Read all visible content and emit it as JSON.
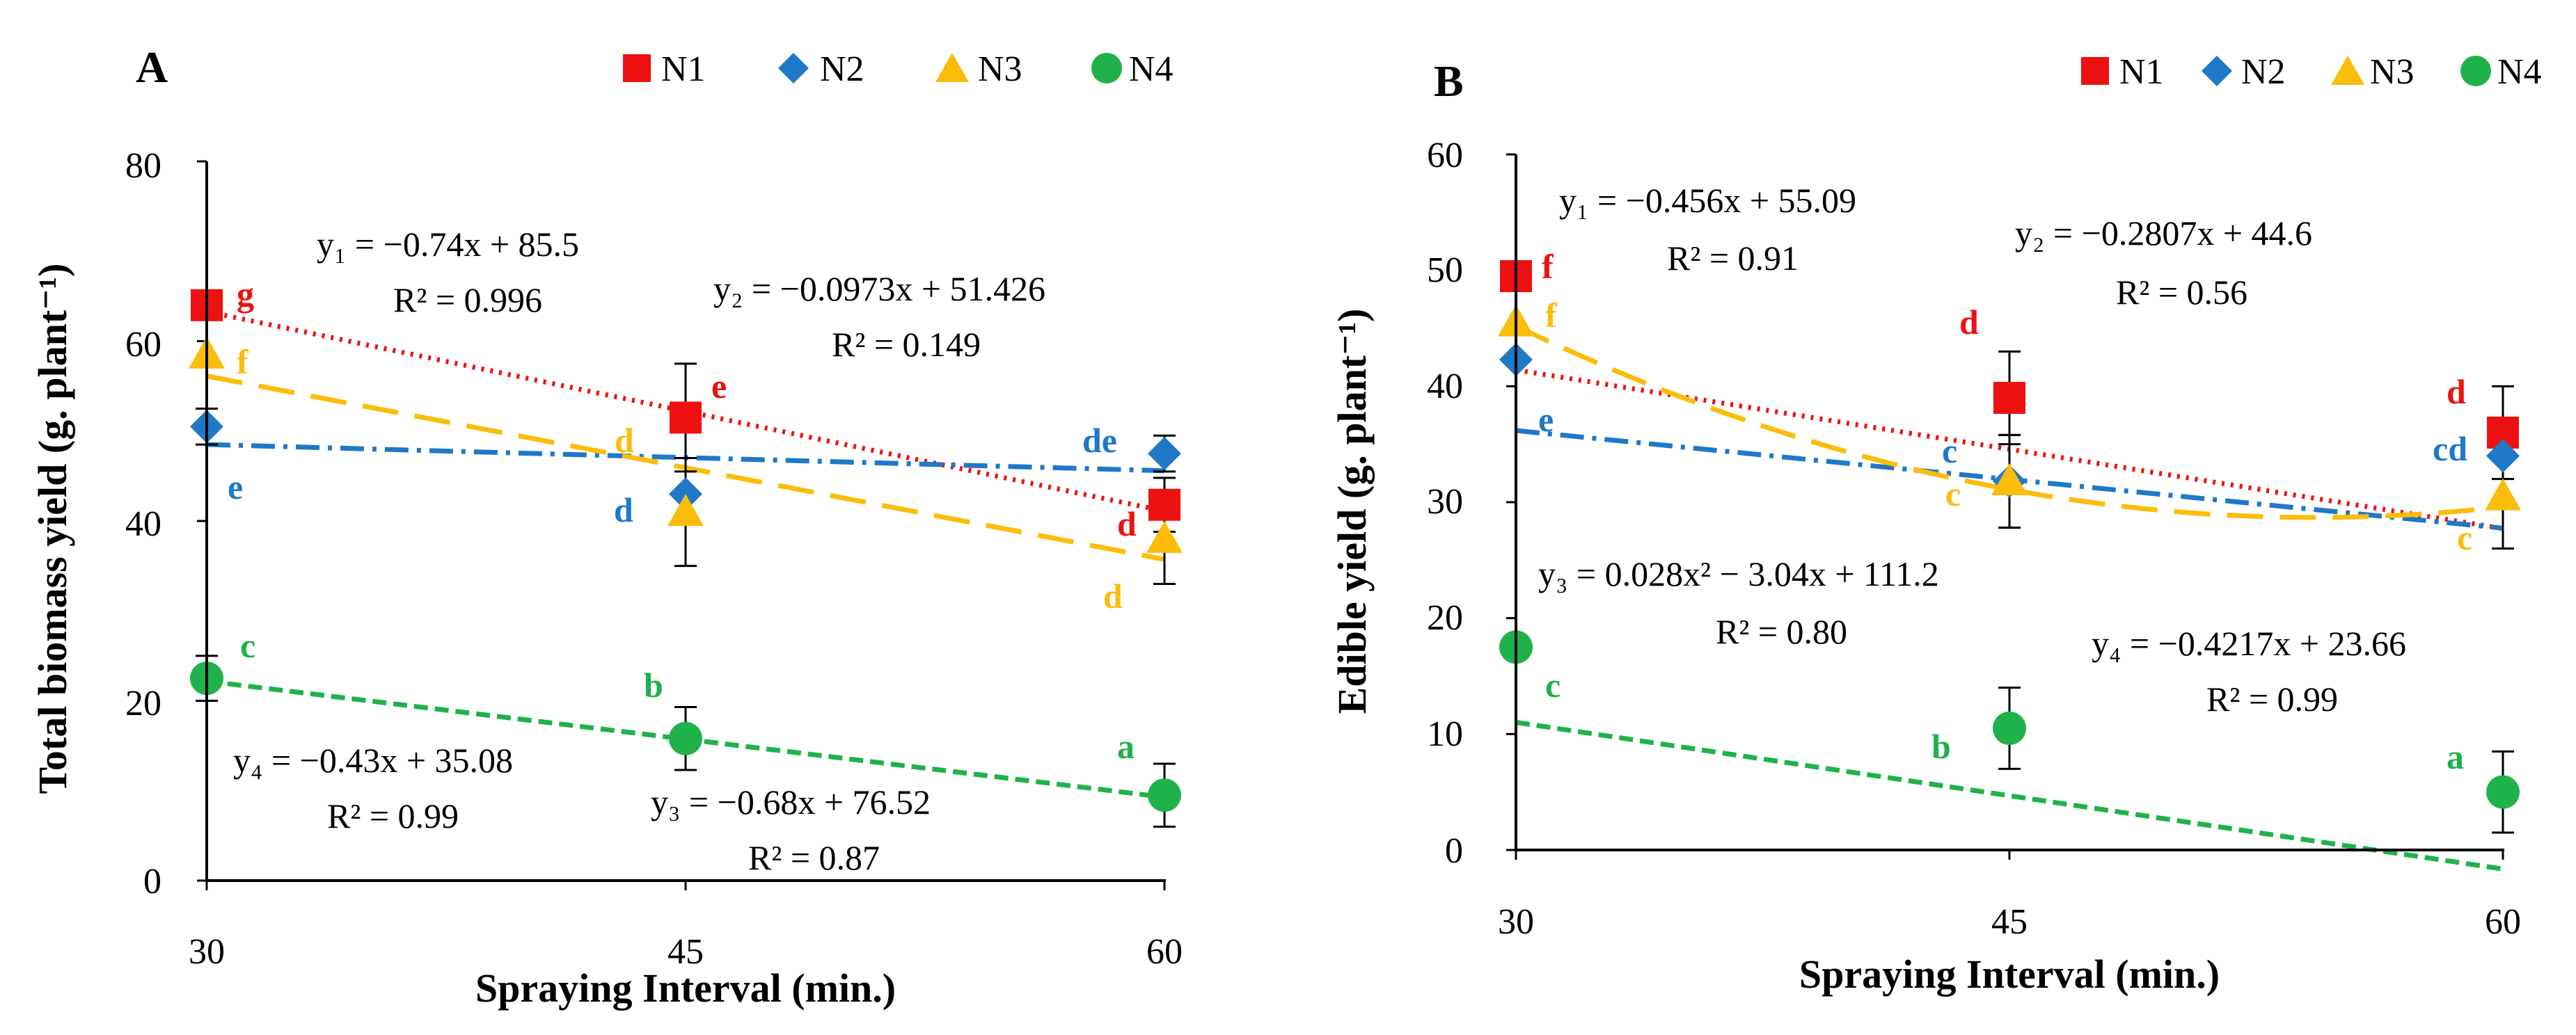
{
  "colors": {
    "N1": "#ee1111",
    "N2": "#1f78c8",
    "N3": "#fbbd0a",
    "N4": "#1fb24a",
    "axis": "#000000"
  },
  "chart_data": [
    {
      "type": "scatter",
      "panel": "A",
      "xlabel": "Spraying Interval (min.)",
      "ylabel": "Total biomass yield (g. plant⁻¹)",
      "x": [
        30,
        45,
        60
      ],
      "x_ticks": [
        "30",
        "45",
        "60"
      ],
      "y_ticks": [
        "0",
        "20",
        "40",
        "60",
        "80"
      ],
      "xlim": [
        30,
        60
      ],
      "ylim": [
        0,
        80
      ],
      "legend": [
        "N1",
        "N2",
        "N3",
        "N4"
      ],
      "legend_position": "top",
      "series": [
        {
          "name": "N1",
          "values": [
            64,
            51.5,
            41.8
          ],
          "errors": [
            0,
            6,
            3
          ],
          "letters": [
            "g",
            "e",
            "d"
          ],
          "trend": {
            "kind": "linear",
            "slope": -0.74,
            "intercept": 85.5,
            "style": "dotted"
          }
        },
        {
          "name": "N2",
          "values": [
            50.5,
            43,
            47.5
          ],
          "errors": [
            2,
            0,
            2
          ],
          "letters": [
            "e",
            "d",
            "de"
          ],
          "trend": {
            "kind": "linear",
            "slope": -0.0973,
            "intercept": 51.426,
            "style": "dashdot"
          }
        },
        {
          "name": "N3",
          "values": [
            58.5,
            41,
            38
          ],
          "errors": [
            0,
            6,
            5
          ],
          "letters": [
            "f",
            "d",
            "d"
          ],
          "trend": {
            "kind": "linear",
            "slope": -0.68,
            "intercept": 76.52,
            "style": "longdash"
          }
        },
        {
          "name": "N4",
          "values": [
            22.5,
            15.8,
            9.5
          ],
          "errors": [
            2.5,
            3.5,
            3.5
          ],
          "letters": [
            "c",
            "b",
            "a"
          ],
          "trend": {
            "kind": "linear",
            "slope": -0.43,
            "intercept": 35.08,
            "style": "dashed"
          }
        }
      ],
      "equations": [
        {
          "line1": "y₁ = −0.74x + 85.5",
          "line2": "R² = 0.996"
        },
        {
          "line1": "y₂ = −0.0973x + 51.426",
          "line2": "R² = 0.149"
        },
        {
          "line1": "y₃ = −0.68x + 76.52",
          "line2": "R² = 0.87"
        },
        {
          "line1": "y₄ = −0.43x + 35.08",
          "line2": "R² = 0.99"
        }
      ]
    },
    {
      "type": "scatter",
      "panel": "B",
      "xlabel": "Spraying Interval (min.)",
      "ylabel": "Edible yield (g. plant⁻¹)",
      "x": [
        30,
        45,
        60
      ],
      "x_ticks": [
        "30",
        "45",
        "60"
      ],
      "y_ticks": [
        "0",
        "10",
        "20",
        "30",
        "40",
        "50",
        "60"
      ],
      "xlim": [
        30,
        60
      ],
      "ylim": [
        0,
        60
      ],
      "legend": [
        "N1",
        "N2",
        "N3",
        "N4"
      ],
      "legend_position": "top",
      "series": [
        {
          "name": "N1",
          "values": [
            49.5,
            39,
            36
          ],
          "errors": [
            0,
            4,
            4
          ],
          "letters": [
            "f",
            "d",
            "d"
          ],
          "trend": {
            "kind": "linear",
            "slope": -0.456,
            "intercept": 55.09,
            "style": "dotted"
          }
        },
        {
          "name": "N2",
          "values": [
            42.3,
            31.8,
            34
          ],
          "errors": [
            0,
            4,
            0
          ],
          "letters": [
            "e",
            "c",
            "cd"
          ],
          "trend": {
            "kind": "linear",
            "slope": -0.2807,
            "intercept": 44.6,
            "style": "dashdot"
          }
        },
        {
          "name": "N3",
          "values": [
            45.5,
            31.8,
            30.5
          ],
          "errors": [
            0,
            4,
            4.5
          ],
          "letters": [
            "f",
            "c",
            "c"
          ],
          "trend": {
            "kind": "quadratic",
            "a": 0.028,
            "b": -3.04,
            "c": 111.2,
            "style": "longdash"
          }
        },
        {
          "name": "N4",
          "values": [
            17.5,
            10.5,
            5
          ],
          "errors": [
            0,
            3.5,
            3.5
          ],
          "letters": [
            "c",
            "b",
            "a"
          ],
          "trend": {
            "kind": "linear",
            "slope": -0.4217,
            "intercept": 23.66,
            "style": "dashed"
          }
        }
      ],
      "equations": [
        {
          "line1": "y₁ = −0.456x + 55.09",
          "line2": "R² = 0.91"
        },
        {
          "line1": "y₂ = −0.2807x + 44.6",
          "line2": "R² = 0.56"
        },
        {
          "line1": "y₃ = 0.028x² − 3.04x + 111.2",
          "line2": "R² = 0.80"
        },
        {
          "line1": "y₄ = −0.4217x + 23.66",
          "line2": "R² = 0.99"
        }
      ]
    }
  ]
}
